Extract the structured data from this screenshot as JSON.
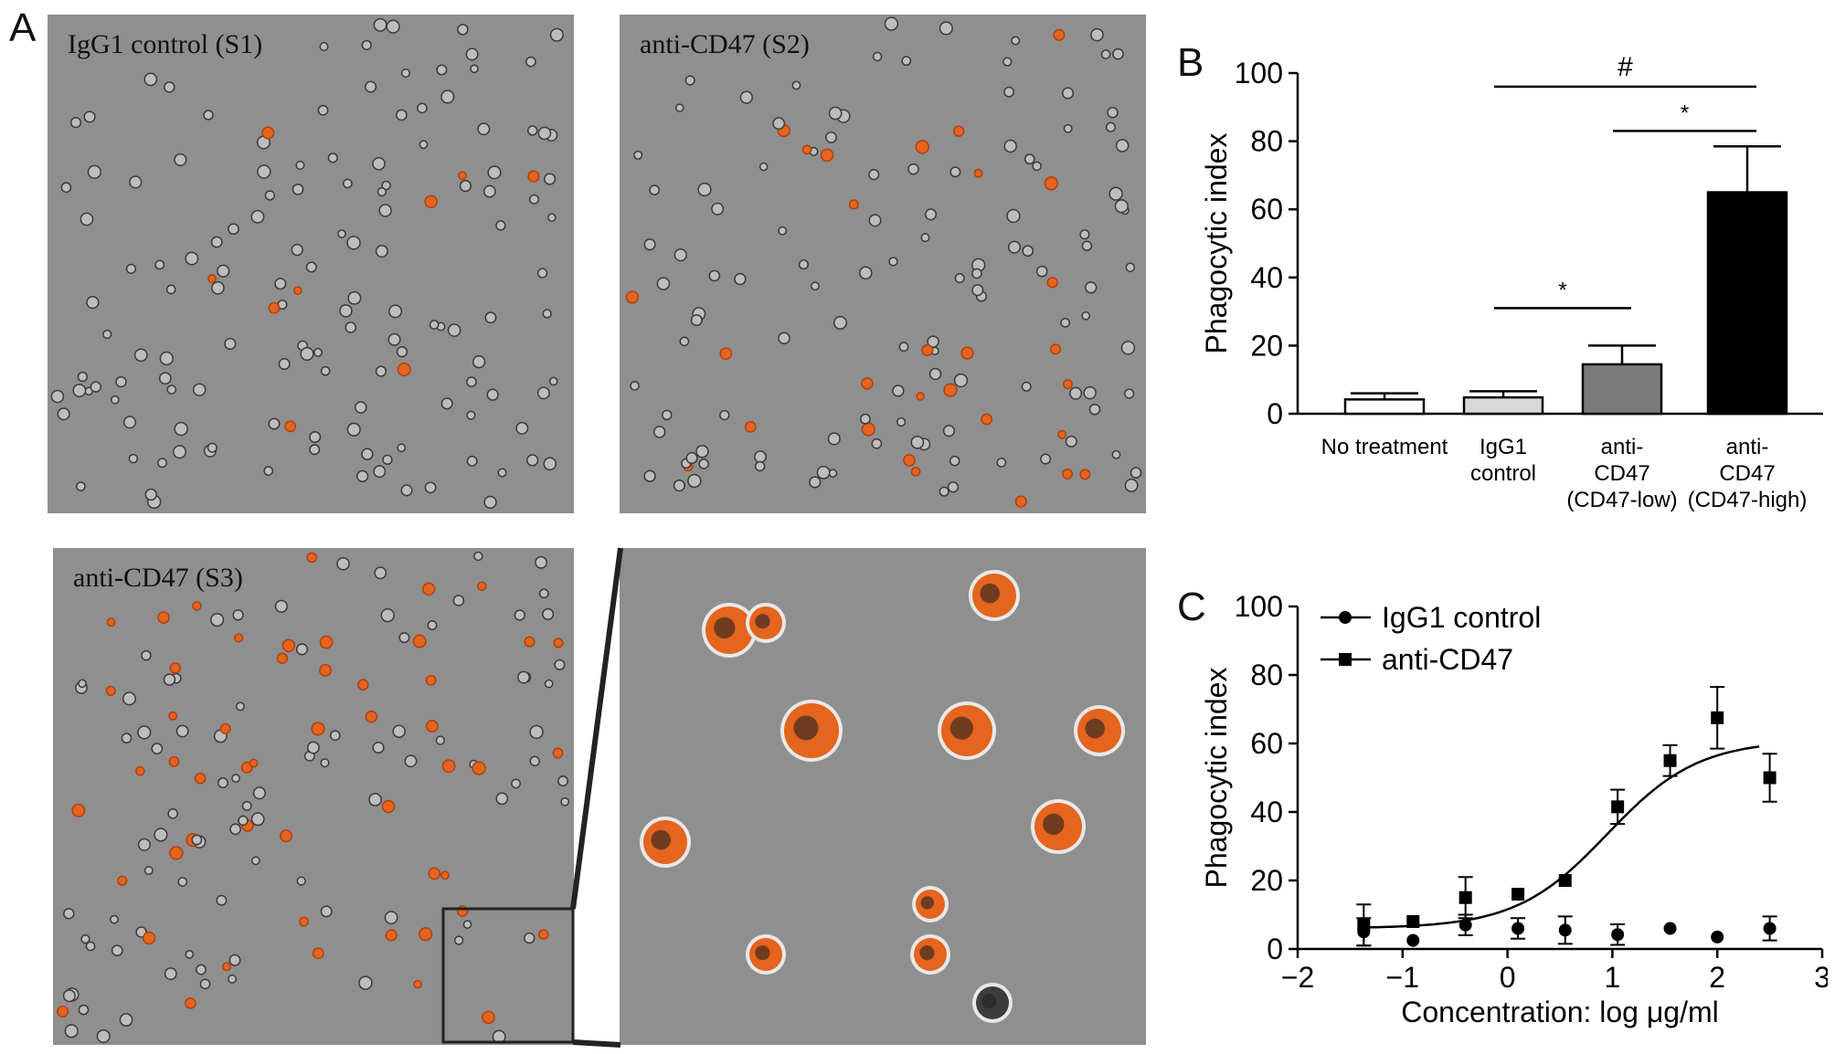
{
  "panels": {
    "A": {
      "letter": "A",
      "images": [
        {
          "label": "IgG1 control (S1)",
          "orange_fraction": 0.04
        },
        {
          "label": "anti-CD47 (S2)",
          "orange_fraction": 0.18
        },
        {
          "label": "anti-CD47 (S3)",
          "orange_fraction": 0.35
        },
        {
          "label": "",
          "orange_fraction": 0.7
        }
      ]
    },
    "B": {
      "letter": "B"
    },
    "C": {
      "letter": "C"
    }
  },
  "colors": {
    "micro_bg": "#8f8f8f",
    "cell_orange": "#e5641e",
    "bar_no_treatment": "#ffffff",
    "bar_igg1": "#d8d8d8",
    "bar_low": "#7a7a7a",
    "bar_high": "#000000"
  },
  "chart_data": [
    {
      "type": "bar",
      "ylabel": "Phagocytic index",
      "ylim": [
        0,
        100
      ],
      "yticks": [
        0,
        20,
        40,
        60,
        80,
        100
      ],
      "categories": [
        [
          "No treatment"
        ],
        [
          "IgG1",
          "control"
        ],
        [
          "anti-",
          "CD47",
          "(CD47-low)"
        ],
        [
          "anti-",
          "CD47",
          "(CD47-high)"
        ]
      ],
      "values": [
        4.2,
        4.8,
        14.5,
        65
      ],
      "errors": [
        1.8,
        1.8,
        5.5,
        13.5
      ],
      "significance": [
        {
          "from": 1,
          "to": 3,
          "y": 96,
          "label": "#"
        },
        {
          "from": 2,
          "to": 3,
          "y": 83,
          "label": "*"
        },
        {
          "from": 1,
          "to": 2,
          "y": 31,
          "label": "*"
        }
      ]
    },
    {
      "type": "scatter",
      "xlabel": "Concentration: log μg/ml",
      "ylabel": "Phagocytic index",
      "xlim": [
        -2,
        3
      ],
      "ylim": [
        0,
        100
      ],
      "xticks": [
        -2,
        -1,
        0,
        1,
        2,
        3
      ],
      "xtick_labels": [
        "−2",
        "−1",
        "0",
        "1",
        "2",
        "3"
      ],
      "yticks": [
        0,
        20,
        40,
        60,
        80,
        100
      ],
      "legend_position": "top-left",
      "series": [
        {
          "name": "IgG1 control",
          "marker": "circle",
          "x": [
            -1.37,
            -0.9,
            -0.4,
            0.1,
            0.55,
            1.05,
            1.55,
            2.0,
            2.5
          ],
          "y": [
            5.0,
            2.5,
            7.0,
            6.0,
            5.5,
            4.2,
            6.0,
            3.5,
            6.0
          ],
          "err": [
            4.0,
            0,
            3.0,
            3.0,
            4.0,
            3.0,
            0,
            0,
            3.5
          ]
        },
        {
          "name": "anti-CD47",
          "marker": "square",
          "x": [
            -1.37,
            -0.9,
            -0.4,
            0.1,
            0.55,
            1.05,
            1.55,
            2.0,
            2.5
          ],
          "y": [
            7.0,
            8.0,
            15.0,
            16.0,
            20.0,
            41.5,
            55.0,
            67.5,
            50.0
          ],
          "err": [
            6.0,
            0,
            6.0,
            0,
            0,
            5.0,
            4.5,
            9.0,
            7.0
          ],
          "fit_curve": true
        }
      ]
    }
  ]
}
